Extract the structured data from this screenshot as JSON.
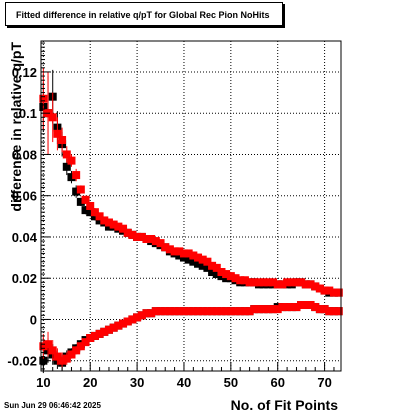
{
  "title": "Fitted difference in relative q/pT for Global Rec Pion NoHits",
  "timestamp": "Sun Jun 29 06:46:42 2025",
  "chart_data": {
    "type": "scatter",
    "title": "Fitted difference in relative q/pT for Global Rec Pion NoHits",
    "xlabel": "No. of Fit Points",
    "ylabel": "difference in relative q/pT",
    "xlim": [
      9.5,
      73.5
    ],
    "ylim": [
      -0.025,
      0.135
    ],
    "xticks": [
      "10",
      "20",
      "30",
      "40",
      "50",
      "60",
      "70"
    ],
    "yticks": [
      "-0.02",
      "0",
      "0.02",
      "0.04",
      "0.06",
      "0.08",
      "0.1",
      "0.12"
    ],
    "grid": true,
    "series": [
      {
        "color": "#000000",
        "marker": "square",
        "x": [
          10,
          11,
          12,
          13,
          14,
          15,
          16,
          17,
          18,
          19,
          20,
          21,
          22,
          23,
          24,
          25,
          26,
          27,
          28,
          29,
          30,
          31,
          32,
          33,
          34,
          35,
          36,
          37,
          38,
          39,
          40,
          41,
          42,
          43,
          44,
          45,
          46,
          47,
          48,
          49,
          50,
          51,
          52,
          53,
          54,
          55,
          56,
          57,
          58,
          59,
          60,
          61,
          62,
          63,
          64,
          65,
          66,
          67,
          68,
          69,
          70,
          71,
          72,
          73
        ],
        "y": [
          0.103,
          0.1,
          0.108,
          0.093,
          0.085,
          0.074,
          0.069,
          0.062,
          0.057,
          0.053,
          0.052,
          0.05,
          0.048,
          0.047,
          0.045,
          0.045,
          0.044,
          0.043,
          0.042,
          0.041,
          0.04,
          0.04,
          0.039,
          0.038,
          0.037,
          0.036,
          0.035,
          0.033,
          0.032,
          0.031,
          0.03,
          0.029,
          0.028,
          0.027,
          0.026,
          0.025,
          0.023,
          0.022,
          0.021,
          0.02,
          0.02,
          0.019,
          0.018,
          0.018,
          0.018,
          0.018,
          0.017,
          0.017,
          0.017,
          0.017,
          0.017,
          0.017,
          0.017,
          0.017,
          0.018,
          0.018,
          0.017,
          0.017,
          0.016,
          0.015,
          0.014,
          0.013,
          0.013,
          0.013
        ],
        "err": [
          0.012,
          0.018,
          0.013,
          0.008,
          0.006,
          0.004,
          0.003,
          0.003,
          0.002,
          0.002,
          0.002,
          0.002,
          0.001,
          0.001,
          0.001,
          0.001,
          0.001,
          0.001,
          0.001,
          0.001,
          0.001,
          0.001,
          0.001,
          0.001,
          0.001,
          0.001,
          0.001,
          0.001,
          0.001,
          0.001,
          0.001,
          0.001,
          0.001,
          0.001,
          0.001,
          0.001,
          0.001,
          0.001,
          0.001,
          0.001,
          0.001,
          0.001,
          0.001,
          0.001,
          0.001,
          0.001,
          0.001,
          0.001,
          0.001,
          0.001,
          0.001,
          0.001,
          0.001,
          0.001,
          0.001,
          0.001,
          0.001,
          0.001,
          0.001,
          0.001,
          0.001,
          0.001,
          0.001,
          0.001
        ]
      },
      {
        "color": "#ff0000",
        "marker": "square",
        "x": [
          10,
          11,
          12,
          13,
          14,
          15,
          16,
          17,
          18,
          19,
          20,
          21,
          22,
          23,
          24,
          25,
          26,
          27,
          28,
          29,
          30,
          31,
          32,
          33,
          34,
          35,
          36,
          37,
          38,
          39,
          40,
          41,
          42,
          43,
          44,
          45,
          46,
          47,
          48,
          49,
          50,
          51,
          52,
          53,
          54,
          55,
          56,
          57,
          58,
          59,
          60,
          61,
          62,
          63,
          64,
          65,
          66,
          67,
          68,
          69,
          70,
          71,
          72,
          73
        ],
        "y": [
          0.107,
          0.1,
          0.098,
          0.09,
          0.087,
          0.08,
          0.077,
          0.07,
          0.063,
          0.058,
          0.055,
          0.052,
          0.05,
          0.048,
          0.047,
          0.046,
          0.045,
          0.044,
          0.042,
          0.041,
          0.04,
          0.04,
          0.039,
          0.039,
          0.038,
          0.037,
          0.035,
          0.034,
          0.033,
          0.033,
          0.032,
          0.032,
          0.031,
          0.03,
          0.029,
          0.028,
          0.026,
          0.025,
          0.023,
          0.022,
          0.021,
          0.02,
          0.019,
          0.019,
          0.018,
          0.018,
          0.018,
          0.018,
          0.018,
          0.018,
          0.017,
          0.017,
          0.018,
          0.018,
          0.018,
          0.018,
          0.017,
          0.017,
          0.016,
          0.015,
          0.014,
          0.014,
          0.013,
          0.013
        ],
        "err": [
          0.015,
          0.02,
          0.012,
          0.008,
          0.006,
          0.004,
          0.003,
          0.003,
          0.002,
          0.002,
          0.002,
          0.002,
          0.001,
          0.001,
          0.001,
          0.001,
          0.001,
          0.001,
          0.001,
          0.001,
          0.001,
          0.001,
          0.001,
          0.001,
          0.001,
          0.001,
          0.001,
          0.001,
          0.001,
          0.001,
          0.001,
          0.001,
          0.001,
          0.001,
          0.001,
          0.001,
          0.001,
          0.001,
          0.001,
          0.001,
          0.001,
          0.001,
          0.001,
          0.001,
          0.001,
          0.001,
          0.001,
          0.001,
          0.001,
          0.001,
          0.001,
          0.001,
          0.001,
          0.001,
          0.001,
          0.001,
          0.001,
          0.001,
          0.001,
          0.001,
          0.001,
          0.001,
          0.001,
          0.001
        ]
      },
      {
        "color": "#000000",
        "marker": "square",
        "x": [
          10,
          11,
          12,
          13,
          14,
          15,
          16,
          17,
          18,
          19,
          20,
          21,
          22,
          23,
          24,
          25,
          26,
          27,
          28,
          29,
          30,
          31,
          32,
          33,
          34,
          35,
          36,
          37,
          38,
          39,
          40,
          41,
          42,
          43,
          44,
          45,
          46,
          47,
          48,
          49,
          50,
          51,
          52,
          53,
          54,
          55,
          56,
          57,
          58,
          59,
          60,
          61,
          62,
          63,
          64,
          65,
          66,
          67,
          68,
          69,
          70,
          71,
          72,
          73
        ],
        "y": [
          -0.02,
          -0.015,
          -0.017,
          -0.02,
          -0.021,
          -0.018,
          -0.016,
          -0.014,
          -0.012,
          -0.01,
          -0.009,
          -0.008,
          -0.007,
          -0.006,
          -0.005,
          -0.004,
          -0.003,
          -0.002,
          -0.001,
          0.0,
          0.001,
          0.002,
          0.003,
          0.003,
          0.004,
          0.004,
          0.004,
          0.004,
          0.004,
          0.004,
          0.004,
          0.004,
          0.004,
          0.004,
          0.004,
          0.004,
          0.004,
          0.004,
          0.004,
          0.004,
          0.004,
          0.004,
          0.004,
          0.004,
          0.004,
          0.005,
          0.005,
          0.005,
          0.005,
          0.005,
          0.006,
          0.006,
          0.006,
          0.006,
          0.006,
          0.007,
          0.007,
          0.007,
          0.006,
          0.005,
          0.005,
          0.004,
          0.004,
          0.004
        ],
        "err": [
          0.006,
          0.006,
          0.005,
          0.004,
          0.004,
          0.003,
          0.002,
          0.002,
          0.002,
          0.001,
          0.001,
          0.001,
          0.001,
          0.001,
          0.001,
          0.001,
          0.001,
          0.001,
          0.001,
          0.001,
          0.001,
          0.001,
          0.001,
          0.001,
          0.001,
          0.001,
          0.001,
          0.001,
          0.001,
          0.001,
          0.001,
          0.001,
          0.001,
          0.001,
          0.001,
          0.001,
          0.001,
          0.001,
          0.001,
          0.001,
          0.001,
          0.001,
          0.001,
          0.001,
          0.001,
          0.001,
          0.001,
          0.001,
          0.001,
          0.001,
          0.001,
          0.001,
          0.001,
          0.001,
          0.001,
          0.001,
          0.001,
          0.001,
          0.001,
          0.001,
          0.001,
          0.001,
          0.001,
          0.001
        ]
      },
      {
        "color": "#ff0000",
        "marker": "square",
        "x": [
          10,
          11,
          12,
          13,
          14,
          15,
          16,
          17,
          18,
          19,
          20,
          21,
          22,
          23,
          24,
          25,
          26,
          27,
          28,
          29,
          30,
          31,
          32,
          33,
          34,
          35,
          36,
          37,
          38,
          39,
          40,
          41,
          42,
          43,
          44,
          45,
          46,
          47,
          48,
          49,
          50,
          51,
          52,
          53,
          54,
          55,
          56,
          57,
          58,
          59,
          60,
          61,
          62,
          63,
          64,
          65,
          66,
          67,
          68,
          69,
          70,
          71,
          72,
          73
        ],
        "y": [
          -0.013,
          -0.012,
          -0.015,
          -0.018,
          -0.02,
          -0.019,
          -0.017,
          -0.015,
          -0.013,
          -0.011,
          -0.009,
          -0.008,
          -0.007,
          -0.006,
          -0.005,
          -0.004,
          -0.003,
          -0.002,
          -0.001,
          0.0,
          0.001,
          0.002,
          0.003,
          0.003,
          0.004,
          0.004,
          0.004,
          0.004,
          0.004,
          0.004,
          0.004,
          0.004,
          0.004,
          0.004,
          0.004,
          0.004,
          0.004,
          0.004,
          0.004,
          0.004,
          0.004,
          0.004,
          0.004,
          0.004,
          0.004,
          0.005,
          0.005,
          0.005,
          0.005,
          0.005,
          0.005,
          0.006,
          0.006,
          0.006,
          0.006,
          0.007,
          0.007,
          0.007,
          0.006,
          0.005,
          0.005,
          0.004,
          0.004,
          0.004
        ],
        "err": [
          0.006,
          0.006,
          0.005,
          0.004,
          0.004,
          0.003,
          0.002,
          0.002,
          0.002,
          0.001,
          0.001,
          0.001,
          0.001,
          0.001,
          0.001,
          0.001,
          0.001,
          0.001,
          0.001,
          0.001,
          0.001,
          0.001,
          0.001,
          0.001,
          0.001,
          0.001,
          0.001,
          0.001,
          0.001,
          0.001,
          0.001,
          0.001,
          0.001,
          0.001,
          0.001,
          0.001,
          0.001,
          0.001,
          0.001,
          0.001,
          0.001,
          0.001,
          0.001,
          0.001,
          0.001,
          0.001,
          0.001,
          0.001,
          0.001,
          0.001,
          0.001,
          0.001,
          0.001,
          0.001,
          0.001,
          0.001,
          0.001,
          0.001,
          0.001,
          0.001,
          0.001,
          0.001,
          0.001,
          0.001
        ]
      }
    ]
  }
}
